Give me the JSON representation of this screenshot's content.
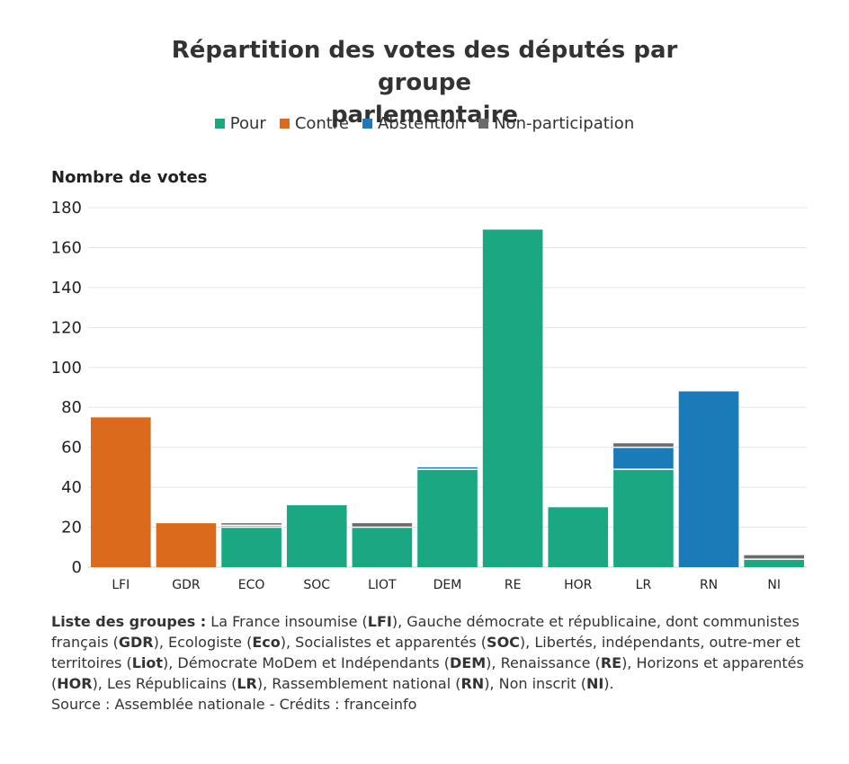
{
  "chart_data": {
    "type": "bar",
    "stacked": true,
    "title": "Répartition des votes des députés par groupe parlementaire",
    "title_lines": [
      "Répartition des votes des députés par groupe",
      "parlementaire"
    ],
    "ylabel": "Nombre de votes",
    "xlabel": "",
    "ylim": [
      0,
      180
    ],
    "yticks": [
      0,
      20,
      40,
      60,
      80,
      100,
      120,
      140,
      160,
      180
    ],
    "grid": true,
    "legend_position": "top-center",
    "categories": [
      "LFI",
      "GDR",
      "ECO",
      "SOC",
      "LIOT",
      "DEM",
      "RE",
      "HOR",
      "LR",
      "RN",
      "NI"
    ],
    "series": [
      {
        "name": "Pour",
        "color": "#1aa882",
        "values": [
          0,
          0,
          20,
          31,
          20,
          49,
          169,
          30,
          49,
          0,
          4
        ]
      },
      {
        "name": "Contre",
        "color": "#dc6a1c",
        "values": [
          75,
          22,
          1,
          0,
          0,
          0,
          0,
          0,
          0,
          0,
          0
        ]
      },
      {
        "name": "Abstention",
        "color": "#1a7bb8",
        "values": [
          0,
          0,
          0,
          0,
          0,
          1,
          0,
          0,
          11,
          88,
          0
        ]
      },
      {
        "name": "Non-participation",
        "color": "#6b6b6b",
        "values": [
          0,
          0,
          1,
          0,
          2,
          0,
          0,
          0,
          2,
          0,
          2
        ]
      }
    ]
  },
  "footer": {
    "groups_heading": "Liste des groupes :",
    "groups_parts": [
      {
        "text": " La France insoumise (",
        "bold": false
      },
      {
        "text": "LFI",
        "bold": true
      },
      {
        "text": "), Gauche démocrate et républicaine, dont communistes français (",
        "bold": false
      },
      {
        "text": "GDR",
        "bold": true
      },
      {
        "text": "), Ecologiste (",
        "bold": false
      },
      {
        "text": "Eco",
        "bold": true
      },
      {
        "text": "), Socialistes et apparentés (",
        "bold": false
      },
      {
        "text": "SOC",
        "bold": true
      },
      {
        "text": "), Libertés, indépendants, outre-mer et territoires (",
        "bold": false
      },
      {
        "text": "Liot",
        "bold": true
      },
      {
        "text": "), Démocrate MoDem et Indépendants (",
        "bold": false
      },
      {
        "text": "DEM",
        "bold": true
      },
      {
        "text": "), Renaissance (",
        "bold": false
      },
      {
        "text": "RE",
        "bold": true
      },
      {
        "text": "), Horizons et apparentés (",
        "bold": false
      },
      {
        "text": "HOR",
        "bold": true
      },
      {
        "text": "), Les Républicains (",
        "bold": false
      },
      {
        "text": "LR",
        "bold": true
      },
      {
        "text": "), Rassemblement national (",
        "bold": false
      },
      {
        "text": "RN",
        "bold": true
      },
      {
        "text": "), Non inscrit (",
        "bold": false
      },
      {
        "text": "NI",
        "bold": true
      },
      {
        "text": ").",
        "bold": false
      }
    ],
    "source": "Source : Assemblée nationale - Crédits : franceinfo"
  }
}
